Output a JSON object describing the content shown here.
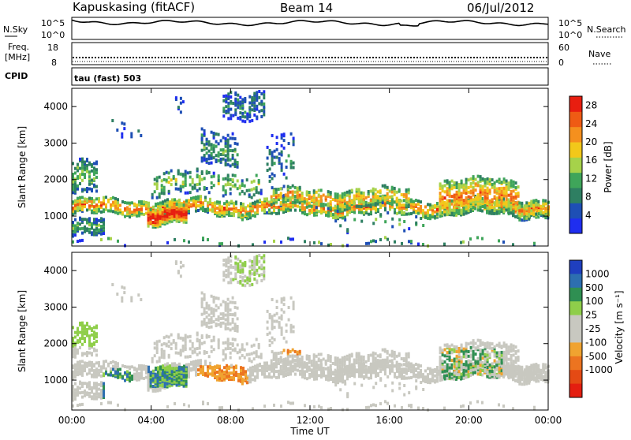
{
  "header": {
    "station": "Kapuskasing (fitACF)",
    "beam": "Beam 14",
    "date": "06/Jul/2012"
  },
  "left_labels": {
    "nsky": "N.Sky",
    "freq": "Freq.",
    "mhz": "[MHz]",
    "cpid": "CPID",
    "nsky_ticks": [
      "10^5",
      "10^0"
    ],
    "freq_ticks": [
      "18",
      "8"
    ]
  },
  "right_labels": {
    "nsearch": "N.Search",
    "nave": "Nave",
    "nsearch_ticks": [
      "10^5",
      "10^0"
    ],
    "nave_ticks": [
      "60",
      "0"
    ]
  },
  "cpid_text": "tau (fast) 503",
  "colors": {
    "power_scale": [
      "#1f2ef0",
      "#1e4fb5",
      "#2e7f62",
      "#3fa55a",
      "#a6d24a",
      "#f2c81a",
      "#f5901e",
      "#ef5b14",
      "#e81e10"
    ],
    "velocity_scale": [
      "#1f3fbf",
      "#2d6fb0",
      "#2f8f52",
      "#8fce4a",
      "#c8c8c0",
      "#c8c8c0",
      "#f0a330",
      "#ec7420",
      "#e44a14",
      "#e41e10"
    ],
    "gray_ground": "#c8c8c0"
  },
  "chart_data": [
    {
      "type": "heatmap",
      "panel": "power",
      "title": "",
      "xlabel": "Time UT",
      "ylabel": "Slant Range [km]",
      "x_ticks": [
        "00:00",
        "04:00",
        "08:00",
        "12:00",
        "16:00",
        "20:00",
        "00:00"
      ],
      "xlim_hours": [
        0,
        24
      ],
      "y_ticks": [
        1000,
        2000,
        3000,
        4000
      ],
      "ylim_km": [
        180,
        4500
      ],
      "colorbar_label": "Power [dB]",
      "colorbar_ticks": [
        4,
        8,
        12,
        16,
        20,
        24,
        28
      ],
      "colorbar_range": [
        0,
        30
      ]
    },
    {
      "type": "heatmap",
      "panel": "velocity",
      "title": "",
      "xlabel": "Time UT",
      "ylabel": "Slant Range [km]",
      "x_ticks": [
        "00:00",
        "04:00",
        "08:00",
        "12:00",
        "16:00",
        "20:00",
        "00:00"
      ],
      "xlim_hours": [
        0,
        24
      ],
      "y_ticks": [
        1000,
        2000,
        3000,
        4000
      ],
      "ylim_km": [
        180,
        4500
      ],
      "colorbar_label": "Velocity [m s⁻¹]",
      "colorbar_ticks": [
        "1000",
        "500",
        "100",
        "25",
        "-25",
        "-100",
        "-500",
        "-1000"
      ],
      "colorbar_range": [
        -1000,
        1000
      ]
    }
  ]
}
